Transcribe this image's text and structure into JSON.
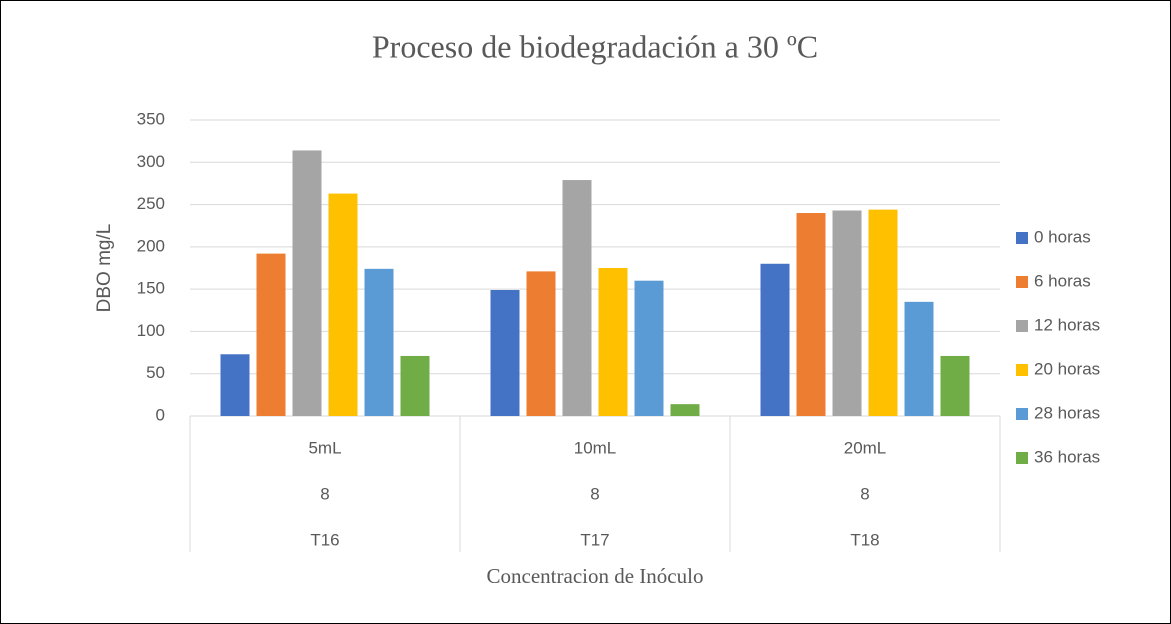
{
  "chart_data": {
    "type": "bar",
    "title": "Proceso de biodegradación a 30 ºC",
    "x_label": "Concentracion de Inóculo",
    "y_label": "DBO mg/L",
    "categories": [
      [
        "5mL",
        "8",
        "T16"
      ],
      [
        "10mL",
        "8",
        "T17"
      ],
      [
        "20mL",
        "8",
        "T18"
      ]
    ],
    "series": [
      {
        "name": "0 horas",
        "color": "#4472c4",
        "values": [
          73,
          149,
          180
        ]
      },
      {
        "name": "6 horas",
        "color": "#ed7d31",
        "values": [
          192,
          171,
          240
        ]
      },
      {
        "name": "12 horas",
        "color": "#a5a5a5",
        "values": [
          314,
          279,
          243
        ]
      },
      {
        "name": "20 horas",
        "color": "#ffc000",
        "values": [
          263,
          175,
          244
        ]
      },
      {
        "name": "28 horas",
        "color": "#5b9bd5",
        "values": [
          174,
          160,
          135
        ]
      },
      {
        "name": "36 horas",
        "color": "#70ad47",
        "values": [
          71,
          14,
          71
        ]
      }
    ],
    "ylim": [
      0,
      350
    ],
    "yticks": [
      0,
      50,
      100,
      150,
      200,
      250,
      300,
      350
    ],
    "grid": true,
    "legend": "right"
  }
}
